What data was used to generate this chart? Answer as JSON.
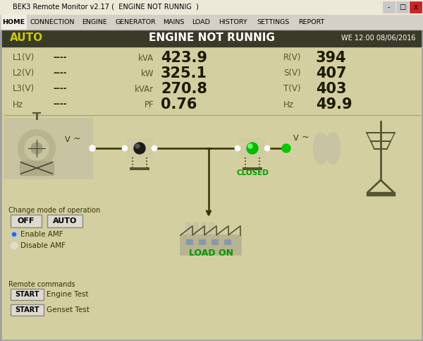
{
  "title_bar": "BEK3 Remote Monitor v2.17 (  ENGINE NOT RUNNIG  )",
  "tabs": [
    "HOME",
    "CONNECTION",
    "ENGINE",
    "GENERATOR",
    "MAINS",
    "LOAD",
    "HISTORY",
    "SETTINGS",
    "REPORT"
  ],
  "active_tab": "HOME",
  "status_left": "AUTO",
  "status_center": "ENGINE NOT RUNNIG",
  "status_right": "WE 12:00 08/06/2016",
  "bg_color": "#d4cfa0",
  "dark_bar_color": "#3a3a28",
  "measurements": [
    {
      "label": "L1(V)",
      "value": "----"
    },
    {
      "label": "L2(V)",
      "value": "----"
    },
    {
      "label": "L3(V)",
      "value": "----"
    },
    {
      "label": "Hz",
      "value": "----"
    }
  ],
  "center_measurements": [
    {
      "label": "kVA",
      "value": "423.9"
    },
    {
      "label": "kW",
      "value": "325.1"
    },
    {
      "label": "kVAr",
      "value": "270.8"
    },
    {
      "label": "PF",
      "value": "0.76"
    }
  ],
  "right_measurements": [
    {
      "label": "R(V)",
      "value": "394"
    },
    {
      "label": "S(V)",
      "value": "407"
    },
    {
      "label": "T(V)",
      "value": "403"
    },
    {
      "label": "Hz",
      "value": "49.9"
    }
  ],
  "green_color": "#00cc00",
  "yellow_color": "#cccc00"
}
